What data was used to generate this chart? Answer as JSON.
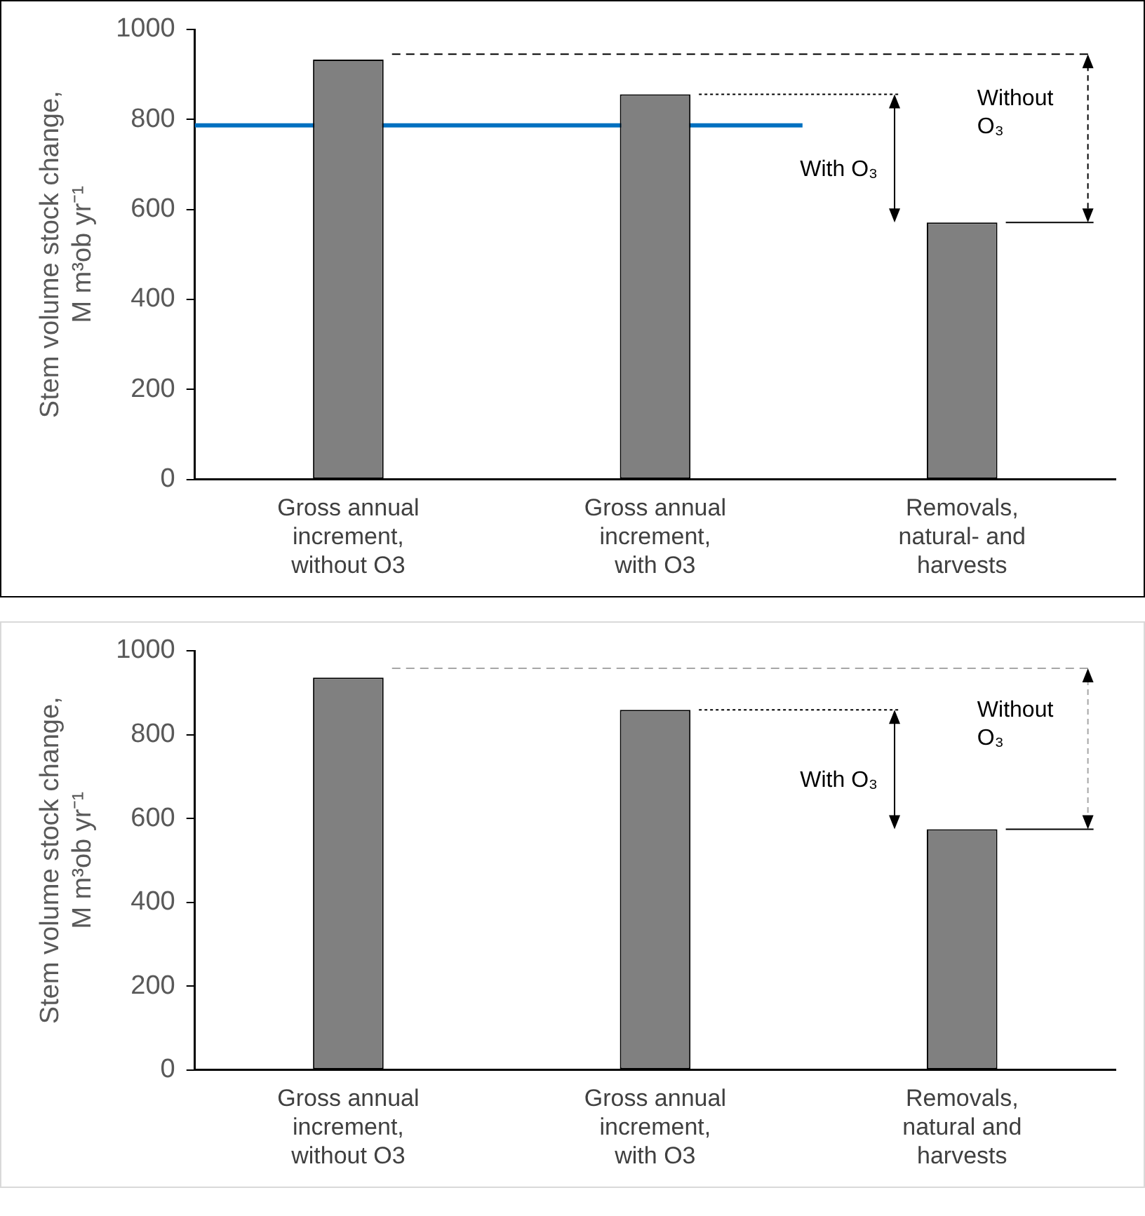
{
  "chart_data": [
    {
      "type": "bar",
      "ylabel": "Stem volume stock change,\nM m³ob yr⁻¹",
      "categories": [
        "Gross annual\nincrement,\nwithout O3",
        "Gross annual\nincrement,\nwith O3",
        "Removals,\nnatural- and\nharvests"
      ],
      "values": [
        933,
        856,
        571
      ],
      "color": "#808080",
      "ylim": [
        0,
        1000
      ],
      "yticks": [
        0,
        200,
        400,
        600,
        800,
        1000
      ],
      "annotations": [
        "With O₃",
        "Without\nO₃"
      ],
      "ref_lines": [
        {
          "axis": "y",
          "value": 787,
          "color": "#0070c0"
        },
        {
          "axis": "y",
          "value": 856,
          "color": "#000000",
          "line_style": "dotted"
        },
        {
          "axis": "y",
          "value": 945,
          "color": "#000000",
          "line_style": "dashed"
        }
      ]
    },
    {
      "type": "bar",
      "ylabel": "Stem volume stock change,\nM m³ob yr⁻¹",
      "categories": [
        "Gross annual\nincrement,\nwithout O3",
        "Gross annual\nincrement,\nwith O3",
        "Removals,\nnatural and\nharvests"
      ],
      "values": [
        936,
        859,
        574
      ],
      "color": "#808080",
      "ylim": [
        0,
        1000
      ],
      "yticks": [
        0,
        200,
        400,
        600,
        800,
        1000
      ],
      "annotations": [
        "With O₃",
        "Without\nO₃"
      ],
      "ref_lines": [
        {
          "axis": "y",
          "value": 859,
          "color": "#000000",
          "line_style": "dotted"
        },
        {
          "axis": "y",
          "value": 958,
          "color": "#a6a6a6",
          "line_style": "dashed"
        }
      ]
    }
  ]
}
